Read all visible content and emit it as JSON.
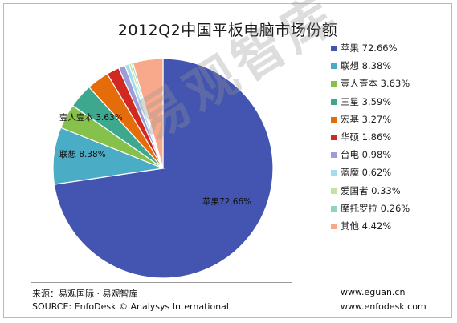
{
  "chart_data": {
    "type": "pie",
    "title": "2012Q2中国平板电脑市场份额",
    "legend_position": "right",
    "slices": [
      {
        "name": "苹果",
        "value": 72.66,
        "label": "苹果 72.66%",
        "color": "#4355b0",
        "data_label": "苹果72.66%"
      },
      {
        "name": "联想",
        "value": 8.38,
        "label": "联想 8.38%",
        "color": "#4bacc6",
        "data_label": "联想 8.38%"
      },
      {
        "name": "壹人壹本",
        "value": 3.63,
        "label": "壹人壹本 3.63%",
        "color": "#86c14b",
        "data_label": "壹人壹本 3.63%"
      },
      {
        "name": "三星",
        "value": 3.59,
        "label": "三星 3.59%",
        "color": "#3ea88e",
        "data_label": ""
      },
      {
        "name": "宏基",
        "value": 3.27,
        "label": "宏基 3.27%",
        "color": "#e46c0a",
        "data_label": ""
      },
      {
        "name": "华硕",
        "value": 1.86,
        "label": "华硕 1.86%",
        "color": "#d1291f",
        "data_label": ""
      },
      {
        "name": "台电",
        "value": 0.98,
        "label": "台电 0.98%",
        "color": "#9c9cd6",
        "data_label": ""
      },
      {
        "name": "蓝魔",
        "value": 0.62,
        "label": "蓝魔 0.62%",
        "color": "#a6dbec",
        "data_label": ""
      },
      {
        "name": "爱国者",
        "value": 0.33,
        "label": "爱国者 0.33%",
        "color": "#c3e29b",
        "data_label": ""
      },
      {
        "name": "摩托罗拉",
        "value": 0.26,
        "label": "摩托罗拉 0.26%",
        "color": "#8fd3c4",
        "data_label": ""
      },
      {
        "name": "其他",
        "value": 4.42,
        "label": "其他 4.42%",
        "color": "#f9a98b",
        "data_label": ""
      }
    ]
  },
  "watermark": "易观智库",
  "footer": {
    "source_cn": "来源：易观国际 · 易观智库",
    "source_en": "SOURCE: EnfoDesk © Analysys International",
    "url1": "www.eguan.cn",
    "url2": "www.enfodesk.com"
  }
}
